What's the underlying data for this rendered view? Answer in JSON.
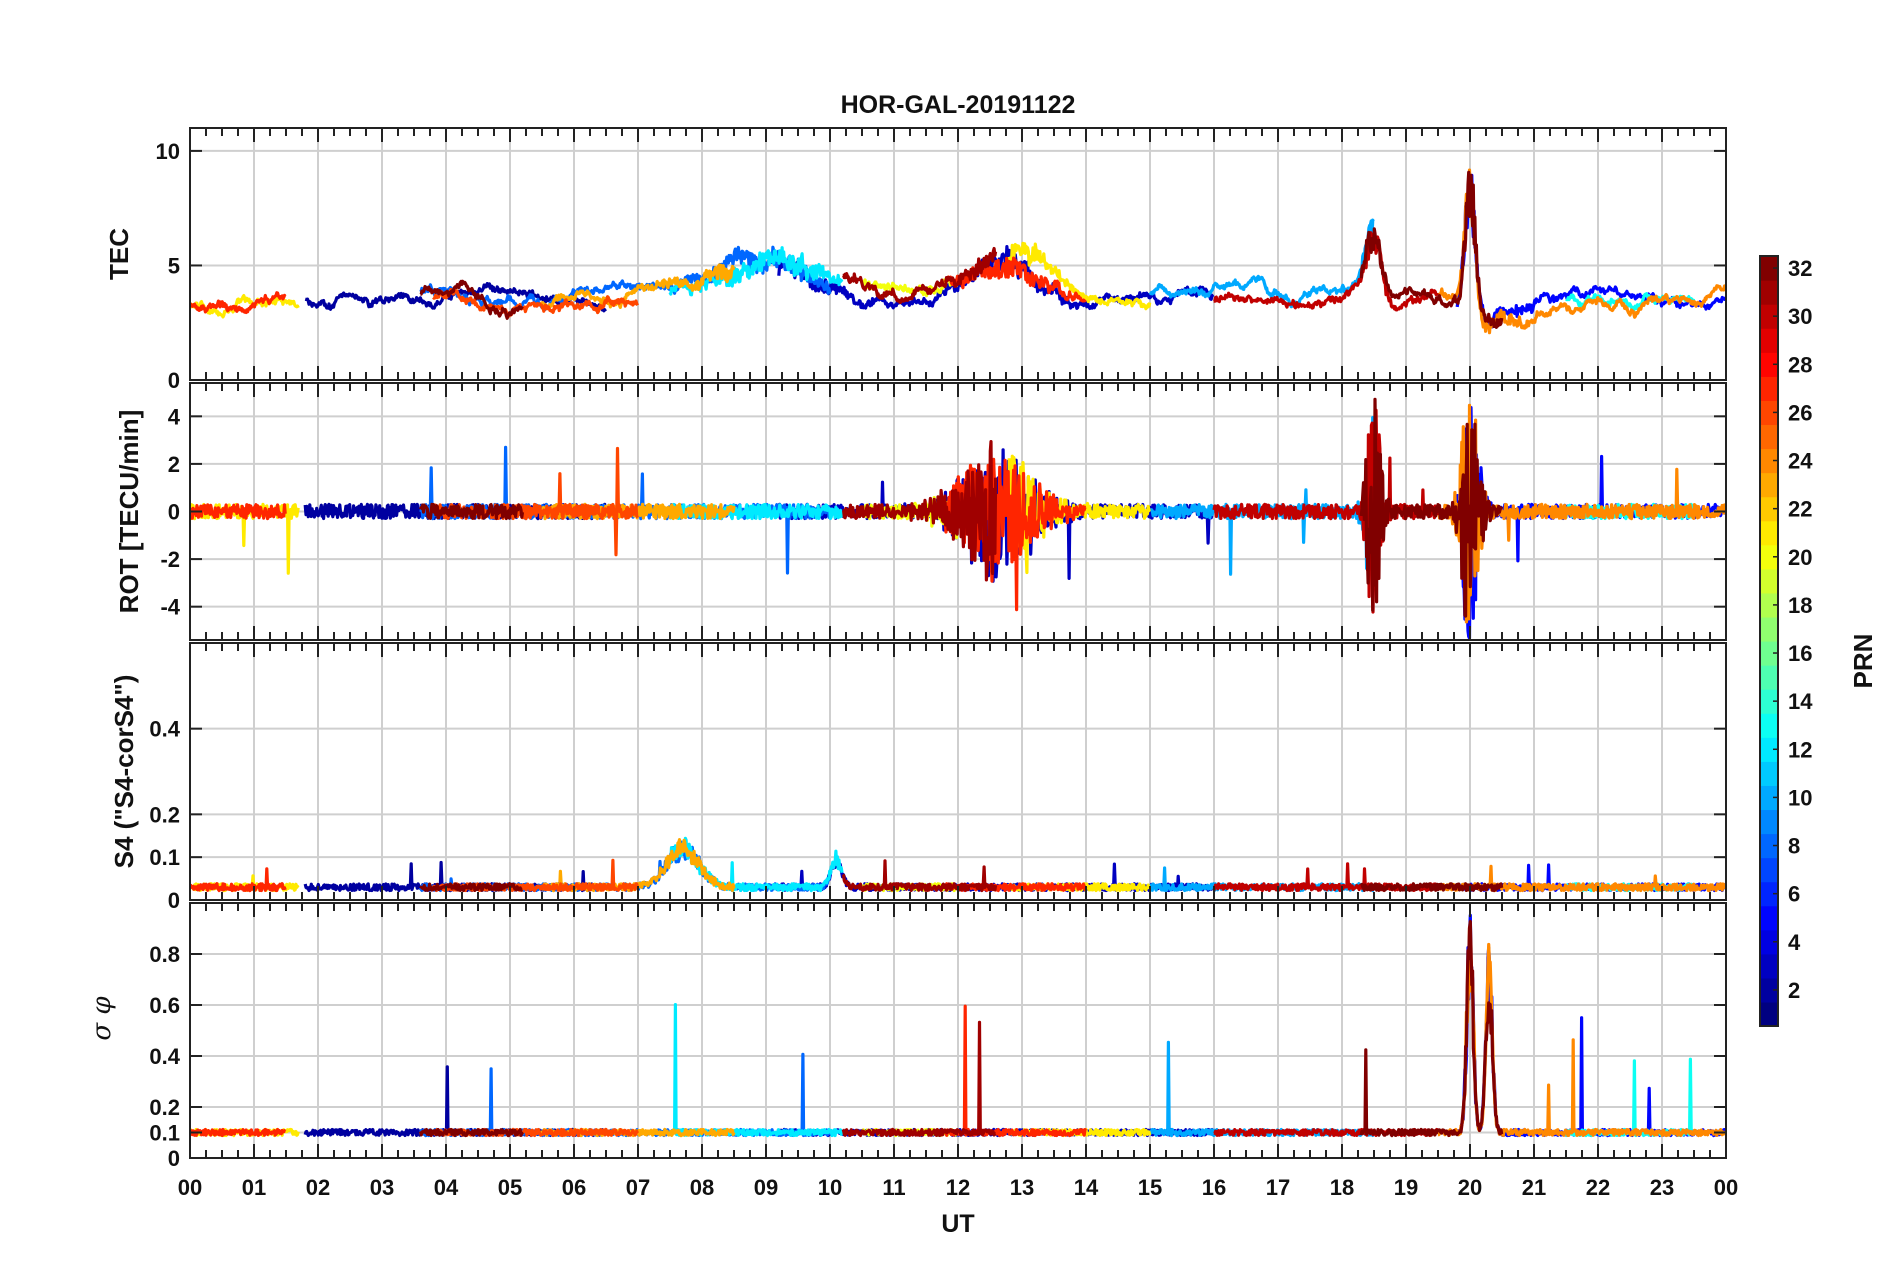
{
  "chart_data": {
    "type": "line",
    "title": "HOR-GAL-20191122",
    "xlabel": "UT",
    "x_ticks": [
      "00",
      "01",
      "02",
      "03",
      "04",
      "05",
      "06",
      "07",
      "08",
      "09",
      "10",
      "11",
      "12",
      "13",
      "14",
      "15",
      "16",
      "17",
      "18",
      "19",
      "20",
      "21",
      "22",
      "23",
      "00"
    ],
    "xlim_hours": [
      0,
      24
    ],
    "grid": true,
    "panels": [
      {
        "name": "tec",
        "ylabel": "TEC",
        "ylim": [
          0,
          11
        ],
        "yticks": [
          0,
          5,
          10
        ],
        "ytick_labels": [
          "0",
          "5",
          "10"
        ],
        "baseline": 3.6,
        "noise": 0.35,
        "spikiness": 0.4,
        "events": [
          {
            "t": 9.0,
            "amp": 2.0,
            "w": 0.9
          },
          {
            "t": 12.8,
            "amp": 2.0,
            "w": 0.6
          },
          {
            "t": 18.5,
            "amp": 3.0,
            "w": 0.12
          },
          {
            "t": 20.0,
            "amp": 6.5,
            "w": 0.08
          },
          {
            "t": 20.5,
            "amp": -1.2,
            "w": 0.5
          }
        ]
      },
      {
        "name": "rot",
        "ylabel": "ROT [TECU/min]",
        "ylim": [
          -5.4,
          5.4
        ],
        "yticks": [
          -4,
          -2,
          0,
          2,
          4
        ],
        "ytick_labels": [
          "-4",
          "-2",
          "0",
          "2",
          "4"
        ],
        "baseline": 0.0,
        "noise": 0.3,
        "spikiness": 2.0,
        "events": [
          {
            "t": 12.6,
            "amp": 2.8,
            "w": 0.5,
            "osc": true
          },
          {
            "t": 18.5,
            "amp": 4.8,
            "w": 0.1,
            "osc": true
          },
          {
            "t": 20.0,
            "amp": 5.5,
            "w": 0.12,
            "osc": true
          }
        ]
      },
      {
        "name": "s4",
        "ylabel": "S4 (\"S4-corS4\")",
        "ylim": [
          0,
          0.6
        ],
        "yticks": [
          0,
          0.1,
          0.2,
          0.4
        ],
        "ytick_labels": [
          "0",
          "0.1",
          "0.2",
          "0.4"
        ],
        "baseline": 0.03,
        "noise": 0.008,
        "spikiness": 0.04,
        "events": [
          {
            "t": 7.7,
            "amp": 0.11,
            "w": 0.25
          },
          {
            "t": 10.1,
            "amp": 0.08,
            "w": 0.08
          }
        ]
      },
      {
        "name": "sigma-phi",
        "ylabel": "σ φ",
        "ylim": [
          0,
          1.0
        ],
        "yticks": [
          0,
          0.1,
          0.2,
          0.4,
          0.6,
          0.8
        ],
        "ytick_labels": [
          "0",
          "0.1",
          "0.2",
          "0.4",
          "0.6",
          "0.8"
        ],
        "baseline": 0.1,
        "noise": 0.012,
        "spikiness": 0.33,
        "events": [
          {
            "t": 20.0,
            "amp": 0.9,
            "w": 0.05
          },
          {
            "t": 20.3,
            "amp": 0.75,
            "w": 0.05
          }
        ]
      }
    ],
    "colorbar": {
      "label": "PRN",
      "min": 1,
      "max": 32,
      "ticks": [
        2,
        4,
        6,
        8,
        10,
        12,
        14,
        16,
        18,
        20,
        22,
        24,
        26,
        28,
        30,
        32
      ],
      "colormap": "jet"
    },
    "series": [
      {
        "prn": 2,
        "t0": 1.8,
        "t1": 6.5
      },
      {
        "prn": 3,
        "t0": 9.2,
        "t1": 16.0
      },
      {
        "prn": 5,
        "t0": 19.8,
        "t1": 24.0
      },
      {
        "prn": 8,
        "t0": 3.6,
        "t1": 10.0
      },
      {
        "prn": 10,
        "t0": 15.0,
        "t1": 18.5
      },
      {
        "prn": 12,
        "t0": 7.5,
        "t1": 10.2
      },
      {
        "prn": 13,
        "t0": 21.5,
        "t1": 23.5
      },
      {
        "prn": 20,
        "t0": 10.5,
        "t1": 12.0
      },
      {
        "prn": 21,
        "t0": 0.0,
        "t1": 1.7
      },
      {
        "prn": 21,
        "t0": 12.8,
        "t1": 15.0
      },
      {
        "prn": 23,
        "t0": 5.5,
        "t1": 8.5
      },
      {
        "prn": 24,
        "t0": 19.5,
        "t1": 24.0
      },
      {
        "prn": 26,
        "t0": 3.8,
        "t1": 7.0
      },
      {
        "prn": 27,
        "t0": 0.0,
        "t1": 1.5
      },
      {
        "prn": 27,
        "t0": 11.8,
        "t1": 14.0
      },
      {
        "prn": 30,
        "t0": 16.0,
        "t1": 19.5
      },
      {
        "prn": 31,
        "t0": 10.2,
        "t1": 12.6
      },
      {
        "prn": 32,
        "t0": 3.6,
        "t1": 5.2
      },
      {
        "prn": 32,
        "t0": 18.3,
        "t1": 20.5
      }
    ]
  }
}
